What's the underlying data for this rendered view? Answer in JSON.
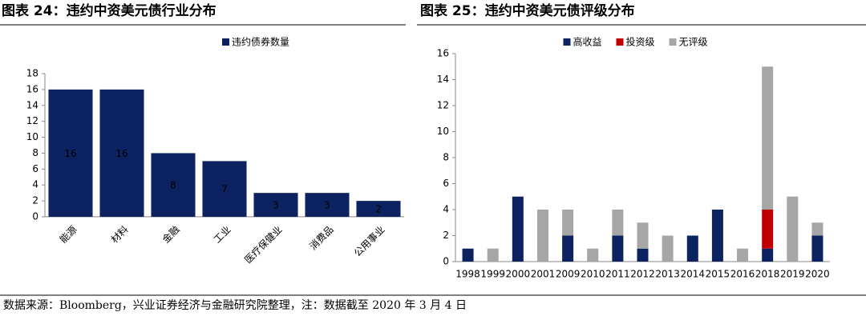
{
  "chart_data": [
    {
      "type": "bar",
      "title": "图表 24：违约中资美元债行业分布",
      "categories": [
        "能源",
        "材料",
        "金融",
        "工业",
        "医疗保健业",
        "消费品",
        "公用事业"
      ],
      "series": [
        {
          "name": "违约债券数量",
          "color": "#0d2361",
          "values": [
            16,
            16,
            8,
            7,
            3,
            3,
            2
          ]
        }
      ],
      "ylim": [
        0,
        18
      ],
      "yticks": [
        0,
        2,
        4,
        6,
        8,
        10,
        12,
        14,
        16,
        18
      ],
      "data_labels": true,
      "x_label_rotation": -45,
      "grid": false,
      "legend": "top"
    },
    {
      "type": "bar",
      "stacked": true,
      "title": "图表 25：违约中资美元债评级分布",
      "categories": [
        "1998",
        "1999",
        "2000",
        "2001",
        "2009",
        "2010",
        "2011",
        "2012",
        "2013",
        "2014",
        "2015",
        "2016",
        "2018",
        "2019",
        "2020"
      ],
      "series": [
        {
          "name": "高收益",
          "color": "#0d2361",
          "values": [
            1,
            0,
            5,
            0,
            2,
            0,
            2,
            1,
            0,
            2,
            4,
            0,
            1,
            0,
            2
          ]
        },
        {
          "name": "投资级",
          "color": "#c00000",
          "values": [
            0,
            0,
            0,
            0,
            0,
            0,
            0,
            0,
            0,
            0,
            0,
            0,
            3,
            0,
            0
          ]
        },
        {
          "name": "无评级",
          "color": "#a6a6a6",
          "values": [
            0,
            1,
            0,
            4,
            2,
            1,
            2,
            2,
            2,
            0,
            0,
            1,
            11,
            5,
            1
          ]
        }
      ],
      "ylim": [
        0,
        16
      ],
      "yticks": [
        0,
        2,
        4,
        6,
        8,
        10,
        12,
        14,
        16
      ],
      "data_labels": false,
      "x_label_rotation": 0,
      "grid": false,
      "legend": "top"
    }
  ],
  "source": "数据来源：Bloomberg，兴业证券经济与金融研究院整理，注：数据截至 2020 年 3 月 4 日"
}
